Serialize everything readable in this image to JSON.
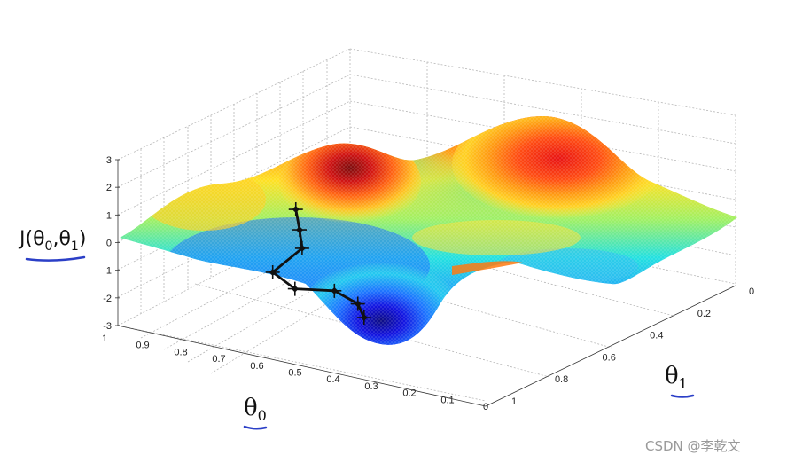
{
  "chart_data": {
    "type": "surface",
    "title": "",
    "zlabel_base": "J(θ",
    "zlabel_sub0": "0",
    "zlabel_mid": ",θ",
    "zlabel_sub1": "1",
    "zlabel_end": ")",
    "xlabel_base": "θ",
    "xlabel_sub": "0",
    "ylabel_base": "θ",
    "ylabel_sub": "1",
    "x_ticks": [
      "1",
      "0.9",
      "0.8",
      "0.7",
      "0.6",
      "0.5",
      "0.4",
      "0.3",
      "0.2",
      "0.1",
      "0"
    ],
    "y_ticks": [
      "0",
      "0.2",
      "0.4",
      "0.6",
      "0.8",
      "1"
    ],
    "z_ticks": [
      "3",
      "2",
      "1",
      "0",
      "-1",
      "-2",
      "-3"
    ],
    "xlim": [
      0,
      1
    ],
    "ylim": [
      0,
      1
    ],
    "zlim": [
      -3,
      3
    ],
    "grid": true,
    "colormap": [
      "#00008f",
      "#0000ff",
      "#00ffff",
      "#ffff00",
      "#ff0000",
      "#800000"
    ],
    "descent_path": [
      {
        "theta0": 0.55,
        "theta1": 0.05,
        "J": 2.3
      },
      {
        "theta0": 0.56,
        "theta1": 0.08,
        "J": 1.4
      },
      {
        "theta0": 0.58,
        "theta1": 0.12,
        "J": 0.5
      },
      {
        "theta0": 0.66,
        "theta1": 0.12,
        "J": -0.6
      },
      {
        "theta0": 0.64,
        "theta1": 0.18,
        "J": -1.4
      },
      {
        "theta0": 0.58,
        "theta1": 0.25,
        "J": -1.6
      },
      {
        "theta0": 0.55,
        "theta1": 0.3,
        "J": -2.2
      },
      {
        "theta0": 0.56,
        "theta1": 0.34,
        "J": -2.9
      }
    ]
  },
  "watermark": "CSDN @李乾文",
  "colors": {
    "path": "#111111",
    "grid": "#b5b5b5",
    "underline": "#2b3fc7"
  }
}
